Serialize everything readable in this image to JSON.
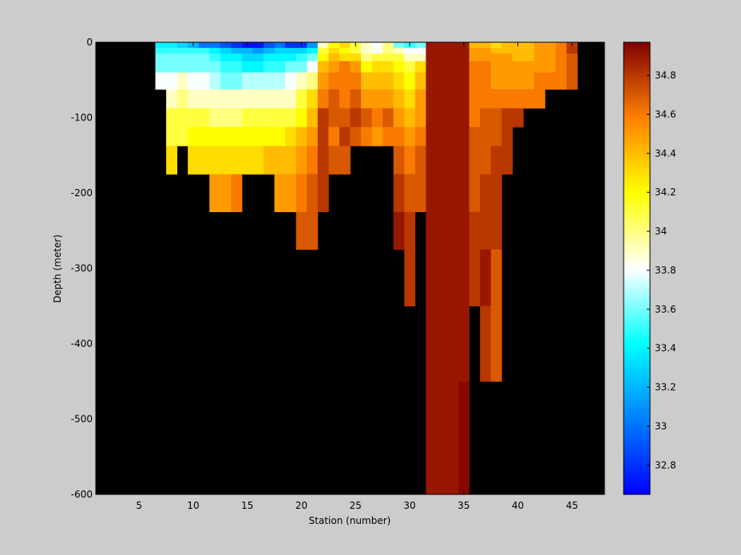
{
  "chart_data": {
    "type": "heatmap",
    "title": "",
    "xlabel": "Station (number)",
    "ylabel": "Depth (meter)",
    "xlim": [
      1,
      48
    ],
    "ylim": [
      -600,
      0
    ],
    "x_ticks": [
      "5",
      "10",
      "15",
      "20",
      "25",
      "30",
      "35",
      "40",
      "45"
    ],
    "x_tick_values": [
      5,
      10,
      15,
      20,
      25,
      30,
      35,
      40,
      45
    ],
    "y_ticks": [
      "0",
      "-100",
      "-200",
      "-300",
      "-400",
      "-500",
      "-600"
    ],
    "y_tick_values": [
      0,
      -100,
      -200,
      -300,
      -400,
      -500,
      -600
    ],
    "background_color": "#000000",
    "colorbar": {
      "range": [
        32.65,
        34.97
      ],
      "colormap": "jet",
      "ticks": [
        "32.8",
        "33",
        "33.2",
        "33.4",
        "33.6",
        "33.8",
        "34",
        "34.2",
        "34.4",
        "34.6",
        "34.8"
      ],
      "tick_values": [
        32.8,
        33.0,
        33.2,
        33.4,
        33.6,
        33.8,
        34.0,
        34.2,
        34.4,
        34.6,
        34.8
      ]
    },
    "station_x": [
      7,
      8,
      9,
      10,
      11,
      12,
      13,
      14,
      15,
      16,
      17,
      18,
      19,
      20,
      21,
      22,
      23,
      24,
      25,
      26,
      27,
      28,
      29,
      30,
      31,
      32,
      33,
      34,
      35,
      36,
      37,
      38,
      39,
      40,
      41,
      42,
      43,
      44,
      45
    ],
    "depth_levels": [
      -5,
      -10,
      -20,
      -30,
      -50,
      -75,
      -100,
      -125,
      -150,
      -200,
      -250,
      -300,
      -400,
      -500,
      -600
    ],
    "salinity_columns": [
      [
        33.4,
        33.5,
        33.6,
        33.6,
        33.8
      ],
      [
        33.4,
        33.5,
        33.6,
        33.6,
        33.8,
        33.9,
        34.1,
        34.1,
        34.3
      ],
      [
        33.3,
        33.5,
        33.6,
        33.6,
        33.9,
        34.0,
        34.1,
        34.1
      ],
      [
        33.2,
        33.5,
        33.6,
        33.6,
        33.8,
        33.9,
        34.1,
        34.2,
        34.3
      ],
      [
        33.0,
        33.5,
        33.6,
        33.6,
        33.8,
        33.9,
        34.1,
        34.2,
        34.3
      ],
      [
        33.0,
        33.4,
        33.5,
        33.6,
        33.7,
        33.9,
        34.0,
        34.2,
        34.3,
        34.5
      ],
      [
        32.9,
        33.3,
        33.4,
        33.5,
        33.6,
        33.9,
        34.0,
        34.2,
        34.3,
        34.5
      ],
      [
        32.8,
        33.2,
        33.4,
        33.5,
        33.6,
        33.9,
        34.0,
        34.2,
        34.3,
        34.6
      ],
      [
        32.7,
        33.2,
        33.3,
        33.4,
        33.7,
        33.9,
        34.1,
        34.2,
        34.3
      ],
      [
        32.7,
        33.1,
        33.3,
        33.4,
        33.7,
        33.9,
        34.1,
        34.2,
        34.3
      ],
      [
        32.9,
        33.2,
        33.4,
        33.5,
        33.7,
        33.9,
        34.1,
        34.2,
        34.4
      ],
      [
        33.0,
        33.3,
        33.4,
        33.5,
        33.7,
        33.9,
        34.1,
        34.2,
        34.4,
        34.5
      ],
      [
        32.8,
        33.3,
        33.4,
        33.6,
        33.8,
        33.9,
        34.1,
        34.3,
        34.4,
        34.5
      ],
      [
        32.8,
        33.3,
        33.5,
        33.6,
        33.9,
        34.1,
        34.2,
        34.4,
        34.5,
        34.6,
        34.7
      ],
      [
        33.1,
        33.4,
        33.6,
        33.8,
        34.0,
        34.3,
        34.4,
        34.5,
        34.6,
        34.7,
        34.7
      ],
      [
        33.9,
        34.1,
        34.2,
        34.4,
        34.5,
        34.6,
        34.8,
        34.8,
        34.8,
        34.8
      ],
      [
        34.2,
        34.3,
        34.4,
        34.5,
        34.6,
        34.7,
        34.7,
        34.6,
        34.7
      ],
      [
        34.3,
        34.2,
        34.3,
        34.6,
        34.6,
        34.6,
        34.7,
        34.8,
        34.7
      ],
      [
        34.1,
        34.1,
        34.3,
        34.5,
        34.6,
        34.7,
        34.8,
        34.7
      ],
      [
        33.9,
        33.9,
        34.0,
        34.2,
        34.4,
        34.5,
        34.7,
        34.6
      ],
      [
        33.8,
        33.8,
        34.1,
        34.3,
        34.4,
        34.5,
        34.6,
        34.5
      ],
      [
        34.0,
        34.0,
        34.1,
        34.3,
        34.4,
        34.5,
        34.7,
        34.6
      ],
      [
        33.6,
        33.9,
        34.1,
        34.2,
        34.3,
        34.4,
        34.5,
        34.6,
        34.7,
        34.8,
        34.9
      ],
      [
        33.5,
        33.8,
        33.9,
        34.1,
        34.2,
        34.3,
        34.4,
        34.5,
        34.6,
        34.7,
        34.8,
        34.8
      ],
      [
        33.6,
        33.8,
        33.9,
        34.3,
        34.4,
        34.5,
        34.5,
        34.6,
        34.7,
        34.7
      ],
      [
        34.9,
        34.9,
        34.9,
        34.9,
        34.9,
        34.9,
        34.9,
        34.9,
        34.9,
        34.9,
        34.9,
        34.9,
        34.9,
        34.9,
        34.9
      ],
      [
        34.9,
        34.9,
        34.9,
        34.9,
        34.9,
        34.9,
        34.9,
        34.9,
        34.9,
        34.9,
        34.9,
        34.9,
        34.9,
        34.9,
        34.9
      ],
      [
        34.9,
        34.9,
        34.9,
        34.9,
        34.9,
        34.9,
        34.9,
        34.9,
        34.9,
        34.9,
        34.9,
        34.9,
        34.9,
        34.9,
        34.9
      ],
      [
        34.9,
        34.9,
        34.9,
        34.9,
        34.9,
        34.9,
        34.9,
        34.9,
        34.9,
        34.9,
        34.9,
        34.9,
        34.9,
        34.95,
        34.95
      ],
      [
        34.4,
        34.5,
        34.5,
        34.6,
        34.6,
        34.6,
        34.6,
        34.7,
        34.7,
        34.7,
        34.8,
        34.8
      ],
      [
        34.4,
        34.5,
        34.5,
        34.6,
        34.6,
        34.6,
        34.7,
        34.7,
        34.7,
        34.8,
        34.8,
        34.9,
        34.8
      ],
      [
        34.3,
        34.4,
        34.5,
        34.5,
        34.5,
        34.6,
        34.7,
        34.7,
        34.8,
        34.8,
        34.8,
        34.7,
        34.7
      ],
      [
        34.4,
        34.4,
        34.5,
        34.5,
        34.5,
        34.6,
        34.8,
        34.8,
        34.8
      ],
      [
        34.4,
        34.4,
        34.4,
        34.5,
        34.5,
        34.6,
        34.8
      ],
      [
        34.4,
        34.4,
        34.4,
        34.5,
        34.5,
        34.6
      ],
      [
        34.5,
        34.5,
        34.5,
        34.5,
        34.6,
        34.6
      ],
      [
        34.5,
        34.5,
        34.5,
        34.5,
        34.6
      ],
      [
        34.6,
        34.6,
        34.6,
        34.6,
        34.6
      ],
      [
        34.8,
        34.8,
        34.7,
        34.7,
        34.7
      ]
    ]
  }
}
